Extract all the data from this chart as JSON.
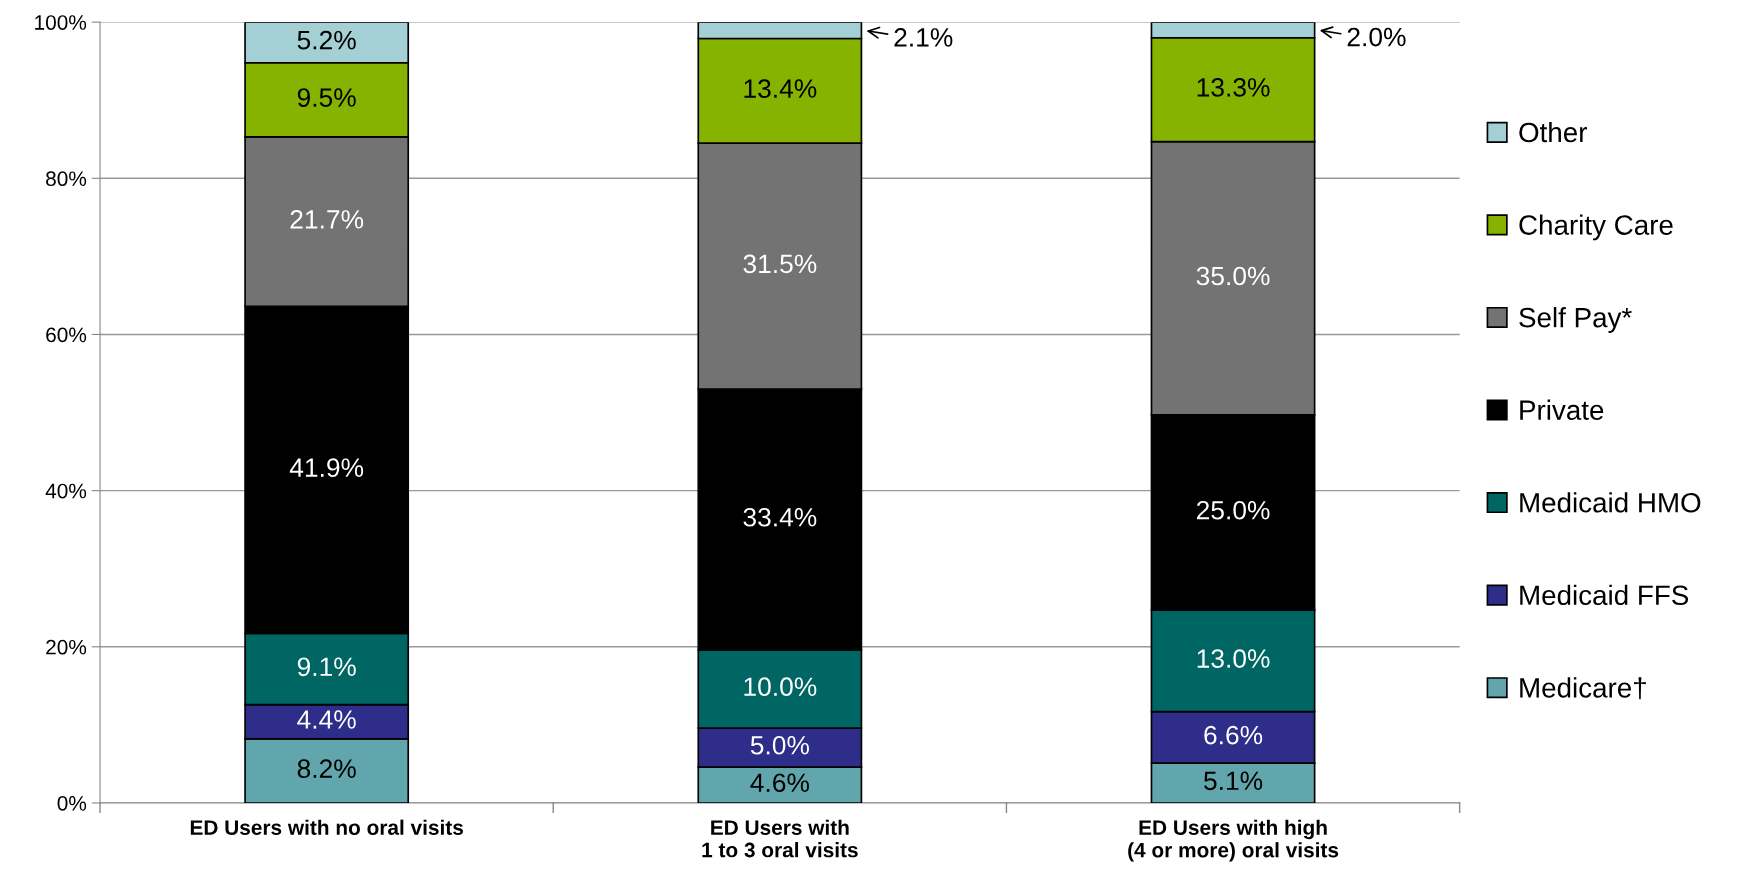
{
  "chart_data": {
    "type": "bar",
    "stacked": true,
    "categories": [
      "ED Users with no oral visits",
      "ED Users with\n1 to 3 oral visits",
      "ED Users with high\n(4 or more) oral visits"
    ],
    "series": [
      {
        "name": "Medicare†",
        "color": "#62a6ad",
        "values": [
          8.2,
          4.6,
          5.1
        ],
        "value_labels": [
          "8.2%",
          "4.6%",
          "5.1%"
        ]
      },
      {
        "name": "Medicaid FFS",
        "color": "#2e2e8a",
        "values": [
          4.4,
          5.0,
          6.6
        ],
        "value_labels": [
          "4.4%",
          "5.0%",
          "6.6%"
        ]
      },
      {
        "name": "Medicaid HMO",
        "color": "#006663",
        "values": [
          9.1,
          10.0,
          13.0
        ],
        "value_labels": [
          "9.1%",
          "10.0%",
          "13.0%"
        ]
      },
      {
        "name": "Private",
        "color": "#000000",
        "values": [
          41.9,
          33.4,
          25.0
        ],
        "value_labels": [
          "41.9%",
          "33.4%",
          "25.0%"
        ]
      },
      {
        "name": "Self Pay*",
        "color": "#737373",
        "values": [
          21.7,
          31.5,
          35.0
        ],
        "value_labels": [
          "21.7%",
          "31.5%",
          "35.0%"
        ]
      },
      {
        "name": "Charity Care",
        "color": "#86b300",
        "values": [
          9.5,
          13.4,
          13.3
        ],
        "value_labels": [
          "9.5%",
          "13.4%",
          "13.3%"
        ]
      },
      {
        "name": "Other",
        "color": "#a3cfd5",
        "values": [
          5.2,
          2.1,
          2.0
        ],
        "value_labels": [
          "5.2%",
          "2.1%",
          "2.0%"
        ]
      }
    ],
    "ylim": [
      0,
      100
    ],
    "yticks": [
      {
        "value": 0,
        "label": "0%"
      },
      {
        "value": 20,
        "label": "20%"
      },
      {
        "value": 40,
        "label": "40%"
      },
      {
        "value": 60,
        "label": "60%"
      },
      {
        "value": 80,
        "label": "80%"
      },
      {
        "value": 100,
        "label": "100%"
      }
    ],
    "grid": "y",
    "legend": "right"
  }
}
